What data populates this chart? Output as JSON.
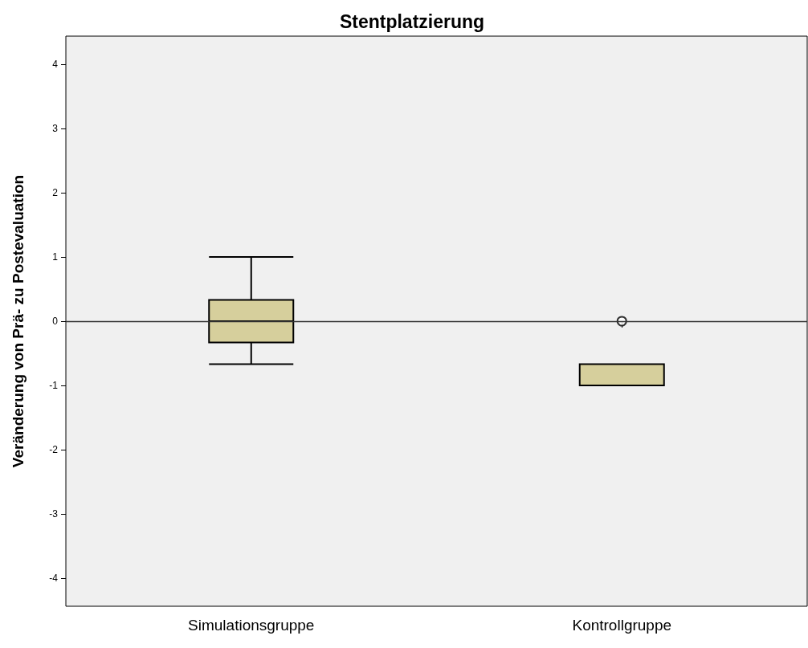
{
  "chart_data": {
    "type": "box",
    "title": "Stentplatzierung",
    "ylabel": "Veränderung von Prä- zu Postevaluation",
    "categories": [
      "Simulationsgruppe",
      "Kontrollgruppe"
    ],
    "boxes": [
      {
        "low": -0.67,
        "q1": -0.33,
        "median": 0,
        "q3": 0.33,
        "high": 1
      },
      {
        "low": -1,
        "q1": -1,
        "median": -0.67,
        "q3": -0.67,
        "high": -0.67,
        "outliers": [
          0
        ]
      }
    ],
    "color": "#d6cf9c",
    "ylim": [
      -4.44,
      4.44
    ],
    "yticks": [
      -4,
      -3,
      -2,
      -1,
      0,
      1,
      2,
      3,
      4
    ],
    "ref_lines": [
      {
        "axis": "y",
        "value": 0,
        "color": "#333333"
      }
    ],
    "marker": "circle"
  }
}
